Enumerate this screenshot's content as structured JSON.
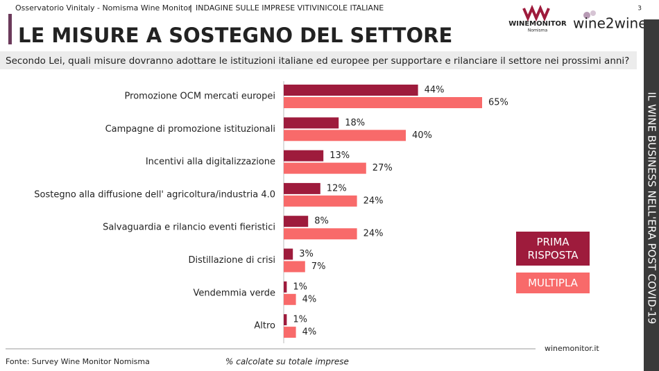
{
  "header": {
    "source_line": "Osservatorio Vinitaly - Nomisma Wine Monitor",
    "separator": "|",
    "survey_line": "INDAGINE SULLE IMPRESE VITIVINICOLE ITALIANE",
    "page_number": "3",
    "title": "LE MISURE A SOSTEGNO DEL SETTORE",
    "logo_main": "WINEMONITOR",
    "logo_sub": "Nomisma",
    "logo_partner": "wine2wine"
  },
  "question": "Secondo Lei, quali misure dovranno adottare le istituzioni italiane ed europee per supportare e rilanciare il settore nei prossimi anni?",
  "sidebar": "IL WINE BUSINESS NELL'ERA POST COVID-19",
  "footer": {
    "website": "winemonitor.it",
    "source": "Fonte: Survey Wine Monitor Nomisma",
    "note": "% calcolate su totale imprese"
  },
  "chart_data": {
    "type": "bar",
    "horizontal": true,
    "categories": [
      "Promozione OCM mercati europei",
      "Campagne di promozione istituzionali",
      "Incentivi alla digitalizzazione",
      "Sostegno alla diffusione dell' agricoltura/industria 4.0",
      "Salvaguardia e rilancio eventi fieristici",
      "Distillazione di crisi",
      "Vendemmia verde",
      "Altro"
    ],
    "series": [
      {
        "name": "PRIMA RISPOSTA",
        "color": "#9e1b3c",
        "values": [
          44,
          18,
          13,
          12,
          8,
          3,
          1,
          1
        ],
        "value_labels": [
          "44%",
          "18%",
          "13%",
          "12%",
          "8%",
          "3%",
          "1%",
          "1%"
        ]
      },
      {
        "name": "MULTIPLA",
        "color": "#f86a6a",
        "values": [
          65,
          40,
          27,
          24,
          24,
          7,
          4,
          4
        ],
        "value_labels": [
          "65%",
          "40%",
          "27%",
          "24%",
          "24%",
          "7%",
          "4%",
          "4%"
        ]
      }
    ]
  }
}
